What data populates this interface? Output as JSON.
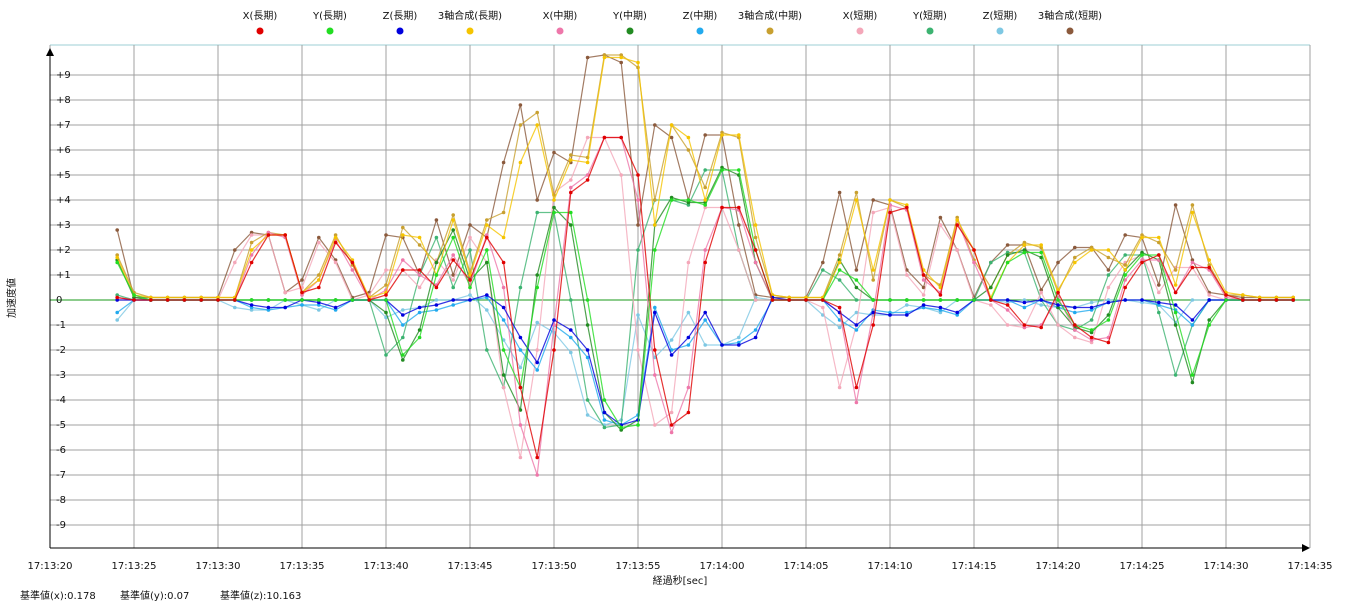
{
  "chart_data": {
    "type": "scatter",
    "xlabel": "経過秒[sec]",
    "ylabel": "加速度値",
    "footer": [
      "基準値(x):0.178",
      "基準値(y):0.07",
      "基準値(z):10.163"
    ],
    "xlim": [
      "17:13:20",
      "17:14:35"
    ],
    "xticks": [
      "17:13:20",
      "17:13:25",
      "17:13:30",
      "17:13:35",
      "17:13:40",
      "17:13:45",
      "17:13:50",
      "17:13:55",
      "17:14:00",
      "17:14:05",
      "17:14:10",
      "17:14:15",
      "17:14:20",
      "17:14:25",
      "17:14:30",
      "17:14:35"
    ],
    "ylim": [
      -10,
      10
    ],
    "yticks": [
      {
        "value": -9,
        "label": "-9"
      },
      {
        "value": -8,
        "label": "-8"
      },
      {
        "value": -7,
        "label": "-7"
      },
      {
        "value": -6,
        "label": "-6"
      },
      {
        "value": -5,
        "label": "-5"
      },
      {
        "value": -4,
        "label": "-4"
      },
      {
        "value": -3,
        "label": "-3"
      },
      {
        "value": -2,
        "label": "-2"
      },
      {
        "value": -1,
        "label": "-1"
      },
      0,
      {
        "value": 1,
        "label": "+1"
      },
      {
        "value": 2,
        "label": "+2"
      },
      {
        "value": 3,
        "label": "+3"
      },
      {
        "value": 4,
        "label": "+4"
      },
      {
        "value": 5,
        "label": "+5"
      },
      {
        "value": 6,
        "label": "+6"
      },
      {
        "value": 7,
        "label": "+7"
      },
      {
        "value": 8,
        "label": "+8"
      },
      {
        "value": 9,
        "label": "+9"
      }
    ],
    "grid": true,
    "x": [
      "17:13:24",
      "17:13:25",
      "17:13:26",
      "17:13:27",
      "17:13:28",
      "17:13:29",
      "17:13:30",
      "17:13:31",
      "17:13:32",
      "17:13:33",
      "17:13:34",
      "17:13:35",
      "17:13:36",
      "17:13:37",
      "17:13:38",
      "17:13:39",
      "17:13:40",
      "17:13:41",
      "17:13:42",
      "17:13:43",
      "17:13:44",
      "17:13:45",
      "17:13:46",
      "17:13:47",
      "17:13:48",
      "17:13:49",
      "17:13:50",
      "17:13:51",
      "17:13:52",
      "17:13:53",
      "17:13:54",
      "17:13:55",
      "17:13:56",
      "17:13:57",
      "17:13:58",
      "17:13:59",
      "17:14:00",
      "17:14:01",
      "17:14:02",
      "17:14:03",
      "17:14:04",
      "17:14:05",
      "17:14:06",
      "17:14:07",
      "17:14:08",
      "17:14:09",
      "17:14:10",
      "17:14:11",
      "17:14:12",
      "17:14:13",
      "17:14:14",
      "17:14:15",
      "17:14:16",
      "17:14:17",
      "17:14:18",
      "17:14:19",
      "17:14:20",
      "17:14:21",
      "17:14:22",
      "17:14:23",
      "17:14:24",
      "17:14:25",
      "17:14:26",
      "17:14:27",
      "17:14:28",
      "17:14:29",
      "17:14:30",
      "17:14:31",
      "17:14:32",
      "17:14:33",
      "17:14:34"
    ],
    "series": [
      {
        "name": "X(長期)",
        "color": "#e00000",
        "values": [
          0.1,
          0,
          0,
          0,
          0,
          0,
          0,
          0,
          1.5,
          2.6,
          2.6,
          0.3,
          0.5,
          2.3,
          1.5,
          0,
          0.2,
          1.2,
          1.2,
          0.5,
          1.6,
          0.8,
          2.5,
          1.5,
          -3.5,
          -6.3,
          -2,
          4.3,
          4.8,
          6.5,
          6.5,
          5,
          -2,
          -5,
          -4.5,
          1.5,
          3.7,
          3.7,
          2,
          0,
          0,
          0,
          0,
          -0.3,
          -3.5,
          -1,
          3.5,
          3.7,
          1,
          0.2,
          3,
          2,
          0,
          -0.2,
          -1,
          -1.1,
          0.3,
          -1,
          -1.5,
          -1.7,
          0.5,
          1.5,
          1.8,
          0.3,
          1.3,
          1.3,
          0.2,
          0,
          0,
          0,
          0
        ]
      },
      {
        "name": "Y(長期)",
        "color": "#22dd22",
        "values": [
          1.5,
          0.2,
          0,
          0,
          0,
          0,
          0,
          0,
          0,
          0,
          0,
          0,
          0,
          0,
          0,
          0,
          0,
          -2.2,
          -1.5,
          1,
          2.5,
          0.5,
          2,
          -2,
          -3.5,
          0.5,
          3.5,
          3.5,
          0,
          -4,
          -5.1,
          -5,
          2,
          4,
          4,
          3.8,
          5.2,
          5.2,
          2,
          0,
          0,
          0,
          0,
          1.2,
          0.8,
          0,
          0,
          0,
          0,
          0,
          0,
          0,
          0,
          1.5,
          1.9,
          1.9,
          0,
          -1,
          -1.2,
          -0.8,
          1,
          1.8,
          1.8,
          -0.5,
          -3,
          -1,
          0,
          0,
          0,
          0,
          0
        ]
      },
      {
        "name": "Z(長期)",
        "color": "#0000dd",
        "values": [
          0,
          0,
          0,
          0,
          0,
          0,
          0,
          0,
          -0.2,
          -0.3,
          -0.3,
          0,
          -0.1,
          -0.3,
          0,
          0,
          0,
          -0.6,
          -0.3,
          -0.2,
          0,
          0,
          0.2,
          -0.3,
          -1.5,
          -2.5,
          -0.8,
          -1.2,
          -2,
          -4.5,
          -5,
          -4.8,
          -0.5,
          -2.2,
          -1.5,
          -0.5,
          -1.8,
          -1.8,
          -1.5,
          0.1,
          0,
          0,
          0,
          -0.5,
          -1,
          -0.5,
          -0.6,
          -0.6,
          -0.2,
          -0.3,
          -0.5,
          0,
          0,
          0,
          -0.1,
          0,
          -0.2,
          -0.3,
          -0.3,
          -0.1,
          0,
          0,
          -0.1,
          -0.2,
          -0.8,
          0,
          0,
          0,
          0,
          0,
          0
        ]
      },
      {
        "name": "3軸合成(長期)",
        "color": "#f5c400",
        "values": [
          1.7,
          0.2,
          0.1,
          0.1,
          0.1,
          0.1,
          0.1,
          0.1,
          2,
          2.6,
          2.6,
          0.3,
          0.8,
          2.5,
          1.6,
          0.1,
          0.3,
          2.6,
          2.5,
          1,
          3.2,
          1,
          3,
          2.5,
          5.5,
          7,
          4,
          5.6,
          5.5,
          9.7,
          9.7,
          9.5,
          3,
          7,
          6.5,
          4,
          6.6,
          6.6,
          3,
          0.2,
          0.1,
          0.1,
          0.1,
          1.5,
          4,
          1.2,
          4,
          3.8,
          1.2,
          0.5,
          3.2,
          2,
          0.1,
          1.5,
          2.2,
          2.2,
          0.4,
          1.5,
          2,
          2,
          1.2,
          2.5,
          2.5,
          0.6,
          3.5,
          1.6,
          0.3,
          0.2,
          0.1,
          0.1,
          0.1
        ]
      },
      {
        "name": "X(中期)",
        "color": "#ee77aa",
        "values": [
          0.1,
          0,
          0,
          0,
          0,
          0,
          0,
          0,
          1.8,
          2.7,
          2.5,
          0.2,
          0.8,
          2.4,
          1.2,
          0,
          0.4,
          1.6,
          1.0,
          0.6,
          1.8,
          0.6,
          2.6,
          0.5,
          -5,
          -7,
          -1,
          4.5,
          5,
          6.5,
          6.5,
          4,
          -3,
          -5.3,
          -3.5,
          2,
          3.7,
          3.6,
          1.5,
          0,
          0,
          0,
          0,
          -0.5,
          -4.1,
          -0.5,
          3.8,
          3.6,
          0.8,
          0.3,
          3.2,
          1.5,
          0,
          -0.4,
          -1.1,
          -1,
          0.1,
          -1.2,
          -1.6,
          -1.5,
          0.8,
          1.6,
          1.6,
          0.3,
          1.5,
          1.2,
          0.1,
          0,
          0,
          0,
          0
        ]
      },
      {
        "name": "Y(中期)",
        "color": "#228b22",
        "values": [
          1.6,
          0.1,
          0,
          0,
          0,
          0,
          0,
          0,
          0,
          0,
          0,
          0,
          0,
          0,
          0,
          0,
          -0.5,
          -2.4,
          -1.2,
          1.5,
          2.8,
          0.8,
          1.5,
          -3,
          -4.4,
          1,
          3.7,
          3,
          -1,
          -4.5,
          -5.2,
          -4.8,
          3,
          4.1,
          3.9,
          3.9,
          5.3,
          5,
          1.5,
          0,
          0,
          0,
          0,
          1.6,
          0.5,
          0,
          0,
          0,
          0,
          0,
          0,
          0,
          0.5,
          1.8,
          2,
          1.7,
          -0.3,
          -1.1,
          -1.3,
          -0.6,
          1.2,
          1.9,
          1.6,
          -1,
          -3.3,
          -0.8,
          0,
          0,
          0,
          0,
          0
        ]
      },
      {
        "name": "Z(中期)",
        "color": "#22aaee",
        "values": [
          -0.5,
          0,
          0,
          0,
          0,
          0,
          0,
          0,
          -0.3,
          -0.4,
          -0.3,
          -0.2,
          -0.2,
          -0.4,
          0,
          0,
          0,
          -1,
          -0.5,
          -0.4,
          -0.2,
          0,
          0.1,
          -0.8,
          -2,
          -2.8,
          -1,
          -1.5,
          -2.3,
          -4.8,
          -5,
          -4.6,
          -0.3,
          -2,
          -1.8,
          -0.8,
          -1.8,
          -1.7,
          -1.2,
          0,
          0,
          0,
          0,
          -0.8,
          -1.2,
          -0.4,
          -0.5,
          -0.5,
          -0.3,
          -0.4,
          -0.6,
          0,
          0,
          0,
          -0.3,
          0,
          -0.3,
          -0.5,
          -0.4,
          -0.1,
          0,
          0,
          -0.2,
          -0.4,
          -1,
          0,
          0,
          0,
          0,
          0,
          0
        ]
      },
      {
        "name": "3軸合成(中期)",
        "color": "#c8a030",
        "values": [
          1.8,
          0.3,
          0.1,
          0.1,
          0.1,
          0.1,
          0.1,
          0.1,
          2.3,
          2.7,
          2.6,
          0.3,
          1,
          2.6,
          1.4,
          0.1,
          0.6,
          2.9,
          2.2,
          1.5,
          3.4,
          1.1,
          3.2,
          3.5,
          7,
          7.5,
          4.2,
          5.8,
          5.7,
          9.8,
          9.8,
          9.3,
          4,
          7,
          6,
          4.5,
          6.7,
          6.5,
          2.5,
          0.2,
          0.1,
          0.1,
          0.1,
          1.8,
          4.3,
          0.8,
          4,
          3.7,
          1,
          0.6,
          3.3,
          1.6,
          0.5,
          1.8,
          2.3,
          2.1,
          0.3,
          1.7,
          2.1,
          1.7,
          1.4,
          2.6,
          2.3,
          1.2,
          3.8,
          1.4,
          0.2,
          0.2,
          0.1,
          0.1,
          0.1
        ]
      },
      {
        "name": "X(短期)",
        "color": "#f4a7b9",
        "values": [
          0,
          0,
          0,
          0,
          0,
          0,
          0,
          1.5,
          2.6,
          2.6,
          0.3,
          0.5,
          2.3,
          1.5,
          0,
          0.2,
          1.2,
          1.2,
          0.5,
          1.6,
          0.8,
          2.5,
          1.5,
          -3.5,
          -6.3,
          -2,
          4.3,
          4.8,
          6.5,
          6.5,
          5,
          -2,
          -5,
          -4.5,
          1.5,
          3.7,
          3.7,
          2,
          0,
          0,
          0,
          0,
          -0.3,
          -3.5,
          -1,
          3.5,
          3.7,
          1,
          0.2,
          3,
          2,
          0,
          -0.2,
          -1,
          -1.1,
          0.3,
          -1,
          -1.5,
          -1.7,
          0.5,
          1.5,
          1.8,
          0.3,
          1.3,
          1.3,
          0.2,
          0,
          0,
          0,
          0,
          0
        ]
      },
      {
        "name": "Y(短期)",
        "color": "#3cb371",
        "values": [
          0.2,
          0,
          0,
          0,
          0,
          0,
          0,
          0,
          0,
          0,
          0,
          0,
          0,
          0,
          0,
          0,
          -2.2,
          -1.5,
          1,
          2.5,
          0.5,
          2,
          -2,
          -3.5,
          0.5,
          3.5,
          3.5,
          0,
          -4,
          -5.1,
          -5,
          2,
          4,
          4,
          3.8,
          5.2,
          5.2,
          2,
          0,
          0,
          0,
          0,
          1.2,
          0.8,
          0,
          0,
          0,
          0,
          0,
          0,
          0,
          0,
          1.5,
          1.9,
          1.9,
          0,
          -1,
          -1.2,
          -0.8,
          1,
          1.8,
          1.8,
          -0.5,
          -3,
          -1,
          0,
          0,
          0,
          0,
          0,
          0
        ]
      },
      {
        "name": "Z(短期)",
        "color": "#7ec8e3",
        "values": [
          -0.8,
          0,
          0,
          0,
          0,
          0,
          0,
          -0.3,
          -0.4,
          -0.4,
          0,
          -0.2,
          -0.4,
          0,
          0,
          0,
          -0.7,
          -0.4,
          -0.3,
          0,
          0,
          0.2,
          -0.4,
          -1.6,
          -2.7,
          -0.9,
          -1.3,
          -2.1,
          -4.6,
          -5,
          -4.8,
          -0.6,
          -2.3,
          -1.6,
          -0.5,
          -1.8,
          -1.8,
          -1.5,
          0.1,
          0,
          0,
          0,
          -0.6,
          -1.1,
          -0.5,
          -0.6,
          -0.6,
          -0.2,
          -0.3,
          -0.5,
          0,
          0,
          0,
          -0.1,
          0,
          -0.2,
          -0.3,
          -0.3,
          -0.1,
          0,
          0,
          -0.1,
          -0.2,
          -0.9,
          0,
          0,
          0,
          0,
          0,
          0,
          0
        ]
      },
      {
        "name": "3軸合成(短期)",
        "color": "#8b5a3c",
        "values": [
          2.8,
          0.1,
          0.1,
          0.1,
          0.1,
          0.1,
          0.1,
          2,
          2.7,
          2.6,
          0.3,
          0.8,
          2.5,
          1.6,
          0.1,
          0.3,
          2.6,
          2.5,
          1,
          3.2,
          1,
          3,
          2.5,
          5.5,
          7.8,
          4,
          5.9,
          5.5,
          9.7,
          9.8,
          9.5,
          3,
          7,
          6.5,
          4,
          6.6,
          6.6,
          3,
          0.2,
          0.1,
          0.1,
          0.1,
          1.5,
          4.3,
          1.2,
          4,
          3.8,
          1.2,
          0.5,
          3.3,
          2,
          0.1,
          1.5,
          2.2,
          2.2,
          0.4,
          1.5,
          2.1,
          2.1,
          1.2,
          2.6,
          2.5,
          0.6,
          3.8,
          1.6,
          0.3,
          0.2,
          0.1,
          0.1,
          0.1,
          0.1
        ]
      }
    ]
  }
}
